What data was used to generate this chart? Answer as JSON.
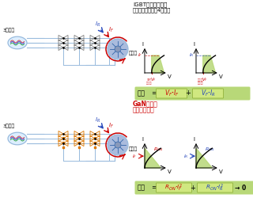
{
  "bg_color": "#ffffff",
  "top_label": "IGBT＋ダイオード",
  "top_label2": "双方向スイッチ（4素子）",
  "bottom_label_red": "GaN双方向",
  "bottom_label2": "トランジスタ",
  "sanso_label": "3相交流",
  "motor_label": "モータ",
  "loss_kanji": "損失",
  "green_fill": "#b8d878",
  "loss_box_color": "#b8d878",
  "red_color": "#cc0000",
  "blue_color": "#2244bb",
  "orange_color": "#dd7700",
  "gray_color": "#777777",
  "light_blue": "#99bbdd",
  "switch_blue": "#6699bb",
  "dark_blue_motor": "#3366aa"
}
